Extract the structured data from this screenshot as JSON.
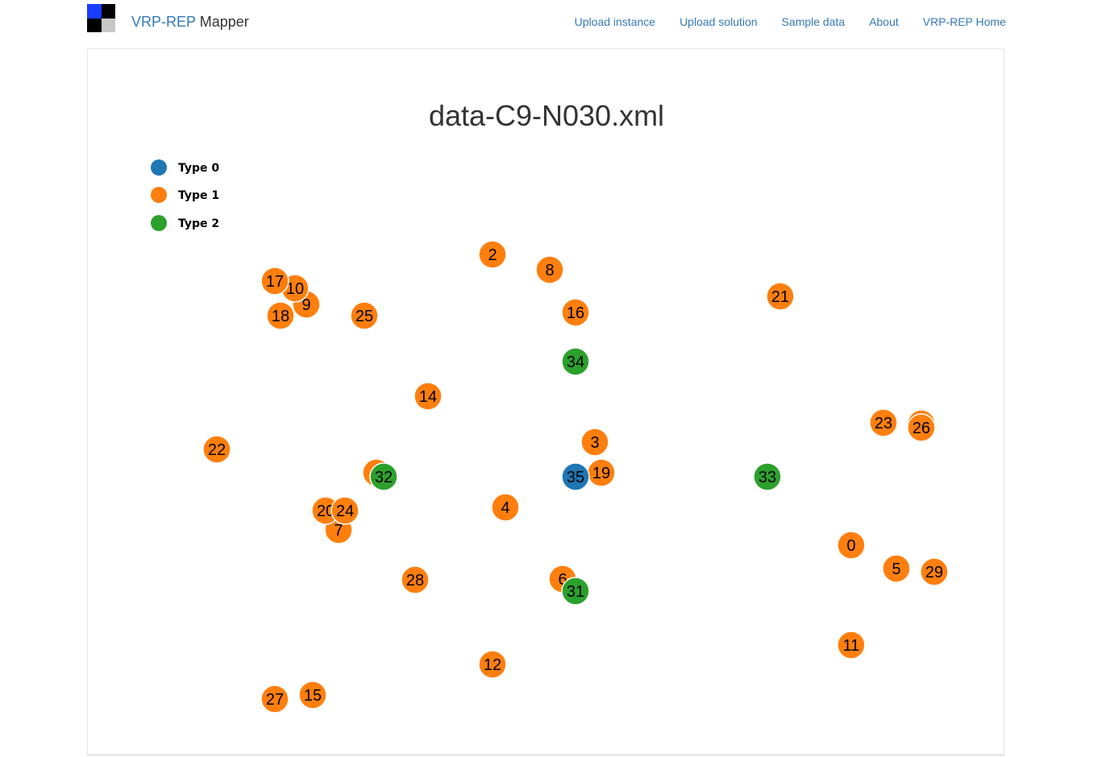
{
  "colors": {
    "brand_blue": "#337ab7",
    "type0": "#1f77b4",
    "type1": "#ff7f0e",
    "type2": "#2ca02c",
    "logo": [
      "#1a3cff",
      "#000000",
      "#000000",
      "#c8c8c8"
    ]
  },
  "navbar": {
    "brand_part1": "VRP-REP",
    "brand_part2": "Mapper",
    "links": [
      "Upload instance",
      "Upload solution",
      "Sample data",
      "About",
      "VRP-REP Home"
    ]
  },
  "map": {
    "title": "data-C9-N030.xml",
    "legend": [
      {
        "label": "Type 0",
        "type": 0
      },
      {
        "label": "Type 1",
        "type": 1
      },
      {
        "label": "Type 2",
        "type": 2
      }
    ],
    "nodes": [
      {
        "id": "0",
        "type": 1
      },
      {
        "id": "2",
        "type": 1
      },
      {
        "id": "3",
        "type": 1
      },
      {
        "id": "4",
        "type": 1
      },
      {
        "id": "5",
        "type": 1
      },
      {
        "id": "6",
        "type": 1
      },
      {
        "id": "7",
        "type": 1
      },
      {
        "id": "8",
        "type": 1
      },
      {
        "id": "9",
        "type": 1
      },
      {
        "id": "10",
        "type": 1
      },
      {
        "id": "11",
        "type": 1
      },
      {
        "id": "12",
        "type": 1
      },
      {
        "id": "14",
        "type": 1
      },
      {
        "id": "15",
        "type": 1
      },
      {
        "id": "16",
        "type": 1
      },
      {
        "id": "17",
        "type": 1
      },
      {
        "id": "18",
        "type": 1
      },
      {
        "id": "19",
        "type": 1
      },
      {
        "id": "20",
        "type": 1
      },
      {
        "id": "21",
        "type": 1
      },
      {
        "id": "22",
        "type": 1
      },
      {
        "id": "23",
        "type": 1
      },
      {
        "id": "24",
        "type": 1
      },
      {
        "id": "25",
        "type": 1
      },
      {
        "id": "",
        "type": 1
      },
      {
        "id": "26",
        "type": 1
      },
      {
        "id": "27",
        "type": 1
      },
      {
        "id": "28",
        "type": 1
      },
      {
        "id": "29",
        "type": 1
      },
      {
        "id": "",
        "type": 1
      },
      {
        "id": "32",
        "type": 2
      },
      {
        "id": "33",
        "type": 2
      },
      {
        "id": "34",
        "type": 2
      },
      {
        "id": "31",
        "type": 2
      },
      {
        "id": "35",
        "type": 0
      }
    ]
  }
}
